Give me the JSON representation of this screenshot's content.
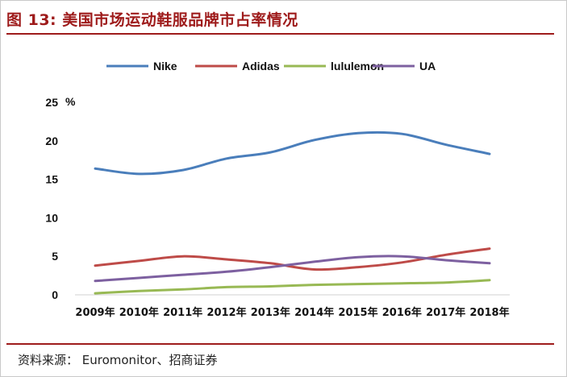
{
  "figure": {
    "title": "图 13:  美国市场运动鞋服品牌市占率情况",
    "source": "资料来源：  Euromonitor、招商证券"
  },
  "chart_data": {
    "type": "line",
    "ylabel": "%",
    "ylim": [
      0,
      25
    ],
    "yticks": [
      0,
      5,
      10,
      15,
      20,
      25
    ],
    "categories": [
      "2009年",
      "2010年",
      "2011年",
      "2012年",
      "2013年",
      "2014年",
      "2015年",
      "2016年",
      "2017年",
      "2018年"
    ],
    "legend_position": "top",
    "grid": false,
    "series": [
      {
        "name": "Nike",
        "color": "#4a7ebb",
        "values": [
          16.4,
          15.7,
          16.2,
          17.7,
          18.5,
          20.1,
          21.0,
          20.9,
          19.5,
          18.3
        ]
      },
      {
        "name": "Adidas",
        "color": "#be4b48",
        "values": [
          3.8,
          4.4,
          5.0,
          4.6,
          4.1,
          3.3,
          3.6,
          4.2,
          5.2,
          6.0
        ]
      },
      {
        "name": "lululemon",
        "color": "#98b954",
        "values": [
          0.2,
          0.5,
          0.7,
          1.0,
          1.1,
          1.3,
          1.4,
          1.5,
          1.6,
          1.9
        ]
      },
      {
        "name": "UA",
        "color": "#7d60a0",
        "values": [
          1.8,
          2.2,
          2.6,
          3.0,
          3.6,
          4.3,
          4.9,
          5.0,
          4.5,
          4.1
        ]
      }
    ]
  }
}
